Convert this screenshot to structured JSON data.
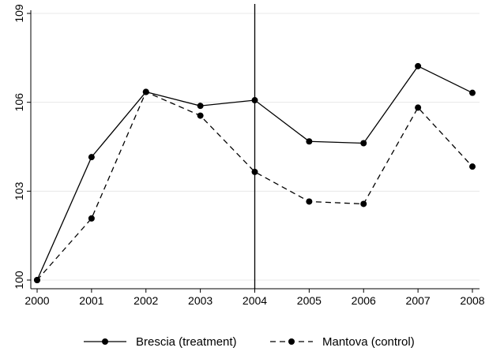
{
  "chart_data": {
    "type": "line",
    "x": [
      2000,
      2001,
      2002,
      2003,
      2004,
      2005,
      2006,
      2007,
      2008
    ],
    "series": [
      {
        "name": "Brescia (treatment)",
        "values": [
          100,
          104.15,
          106.35,
          105.88,
          106.07,
          104.68,
          104.62,
          107.22,
          106.32
        ],
        "line_style": "solid",
        "color": "#000000"
      },
      {
        "name": "Mantova (control)",
        "values": [
          100,
          102.08,
          106.35,
          105.55,
          103.65,
          102.65,
          102.57,
          105.82,
          103.83
        ],
        "line_style": "dashed",
        "color": "#000000"
      }
    ],
    "x_ticks": [
      "2000",
      "2001",
      "2002",
      "2003",
      "2004",
      "2005",
      "2006",
      "2007",
      "2008"
    ],
    "y_ticks": [
      {
        "value": 100,
        "label": "100"
      },
      {
        "value": 103,
        "label": "103"
      },
      {
        "value": 106,
        "label": "106"
      },
      {
        "value": 109,
        "label": "109"
      }
    ],
    "xlim": [
      2000,
      2008
    ],
    "ylim": [
      100,
      109
    ],
    "vertical_reference_line": 2004,
    "grid": "horizontal",
    "grid_color": "#e8e8e8",
    "legend_placement": "bottom"
  }
}
